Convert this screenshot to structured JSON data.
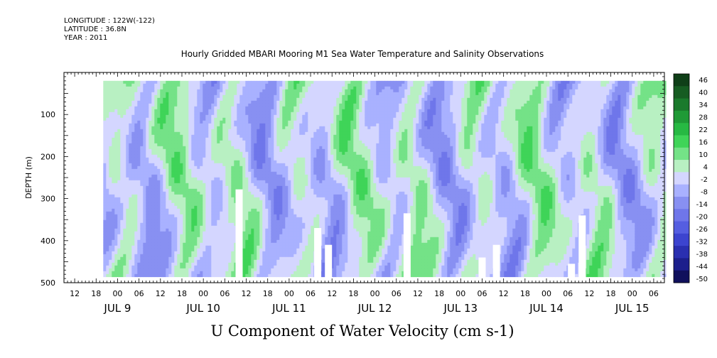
{
  "header": {
    "longitude": "LONGITUDE : 122W(-122)",
    "latitude": "LATITUDE : 36.8N",
    "year": "YEAR : 2011"
  },
  "chart_data": {
    "type": "heatmap",
    "title": "Hourly Gridded MBARI Mooring M1 Sea Water Temperature and Salinity Observations",
    "xlabel": "U Component of Water Velocity (cm s-1)",
    "ylabel": "DEPTH (m)",
    "ylim": [
      500,
      0
    ],
    "y_reversed": true,
    "y_ticks": [
      100,
      200,
      300,
      400,
      500
    ],
    "x_axis": {
      "start": "2011-07-08T09:00",
      "end": "2011-07-15T09:00",
      "hour_ticks": [
        "12",
        "18",
        "00",
        "06",
        "12",
        "18",
        "00",
        "06",
        "12",
        "18",
        "00",
        "06",
        "12",
        "18",
        "00",
        "06",
        "12",
        "18",
        "00",
        "06",
        "12",
        "18",
        "00",
        "06",
        "12",
        "18",
        "00",
        "06"
      ],
      "day_labels": [
        "JUL 9",
        "JUL 10",
        "JUL 11",
        "JUL 12",
        "JUL 13",
        "JUL 14",
        "JUL 15"
      ]
    },
    "data_extent": {
      "start": "2011-07-08T20:00",
      "end": "2011-07-15T09:00",
      "depth_min": 20,
      "depth_max": 486
    },
    "colorbar": {
      "labels": [
        "46",
        "40",
        "34",
        "28",
        "22",
        "16",
        "10",
        "4",
        "-2",
        "-8",
        "-14",
        "-20",
        "-26",
        "-32",
        "-38",
        "-44",
        "-50"
      ],
      "colors": [
        "#0f3f18",
        "#165c22",
        "#1a7a2c",
        "#1f9a36",
        "#27b943",
        "#3fd458",
        "#74e287",
        "#b8f0c2",
        "#d4d6ff",
        "#a9b1ff",
        "#8890f2",
        "#6f76ea",
        "#555ee1",
        "#3c44cf",
        "#2a2fb0",
        "#1c1f8c",
        "#10105c"
      ]
    },
    "missing_columns": [
      {
        "t": "2011-07-10T10:00",
        "depth_from": 278
      },
      {
        "t": "2011-07-11T08:00",
        "depth_from": 370
      },
      {
        "t": "2011-07-11T11:00",
        "depth_from": 410
      },
      {
        "t": "2011-07-12T09:00",
        "depth_from": 335
      },
      {
        "t": "2011-07-13T06:00",
        "depth_from": 440
      },
      {
        "t": "2011-07-13T10:00",
        "depth_from": 410
      },
      {
        "t": "2011-07-14T07:00",
        "depth_from": 455
      },
      {
        "t": "2011-07-14T10:00",
        "depth_from": 340
      }
    ]
  }
}
